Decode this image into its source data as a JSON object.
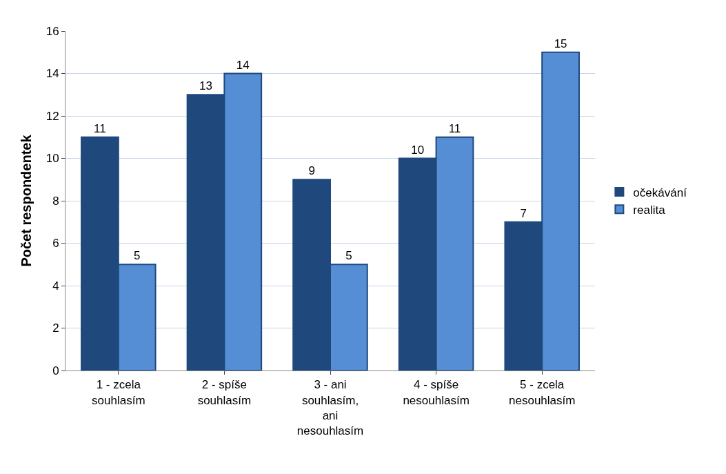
{
  "chart_data": {
    "type": "bar",
    "ylabel": "Počet respondentek",
    "categories": [
      "1 - zcela souhlasím",
      "2 - spíše souhlasím",
      "3 - ani souhlasím, ani nesouhlasím",
      "4 - spíše nesouhlasím",
      "5 - zcela nesouhlasím"
    ],
    "series": [
      {
        "name": "očekávání",
        "color": "#1f497d",
        "values": [
          11,
          13,
          9,
          10,
          7
        ]
      },
      {
        "name": "realita",
        "color": "#558ed5",
        "values": [
          5,
          14,
          5,
          11,
          15
        ]
      }
    ],
    "ylim": [
      0,
      16
    ],
    "yticks": [
      0,
      2,
      4,
      6,
      8,
      10,
      12,
      14,
      16
    ],
    "grid": "y",
    "legend": "right",
    "data_labels": true
  }
}
